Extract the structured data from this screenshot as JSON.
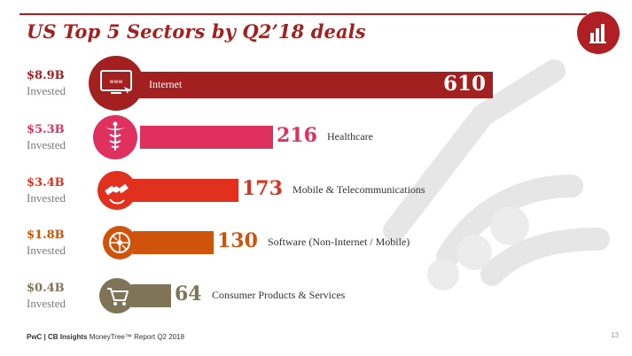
{
  "title": "US Top 5 Sectors by Q2’18 deals",
  "footer": {
    "brand": "PwC | CB Insights",
    "report": "MoneyTree™ Report Q2 2018",
    "page": "13"
  },
  "colors": {
    "title": "#a32020",
    "internet": "#a32020",
    "healthcare": "#e0305f",
    "mobile": "#e1301d",
    "software": "#d0530c",
    "consumer": "#7f7457"
  },
  "icons": [
    "bar-chart-icon",
    "browser-www-icon",
    "caduceus-icon",
    "satellite-icon",
    "disc-icon",
    "shopping-cart-icon",
    "handshake-icon"
  ],
  "invested_label": "Invested",
  "chart_data": {
    "type": "bar",
    "title": "US Top 5 Sectors by Q2’18 deals",
    "categories": [
      "Internet",
      "Healthcare",
      "Mobile & Telecommunications",
      "Software (Non-Internet / Mobile)",
      "Consumer Products & Services"
    ],
    "values": [
      610,
      216,
      173,
      130,
      64
    ],
    "invested": [
      "$8.9B",
      "$5.3B",
      "$3.4B",
      "$1.8B",
      "$0.4B"
    ]
  }
}
